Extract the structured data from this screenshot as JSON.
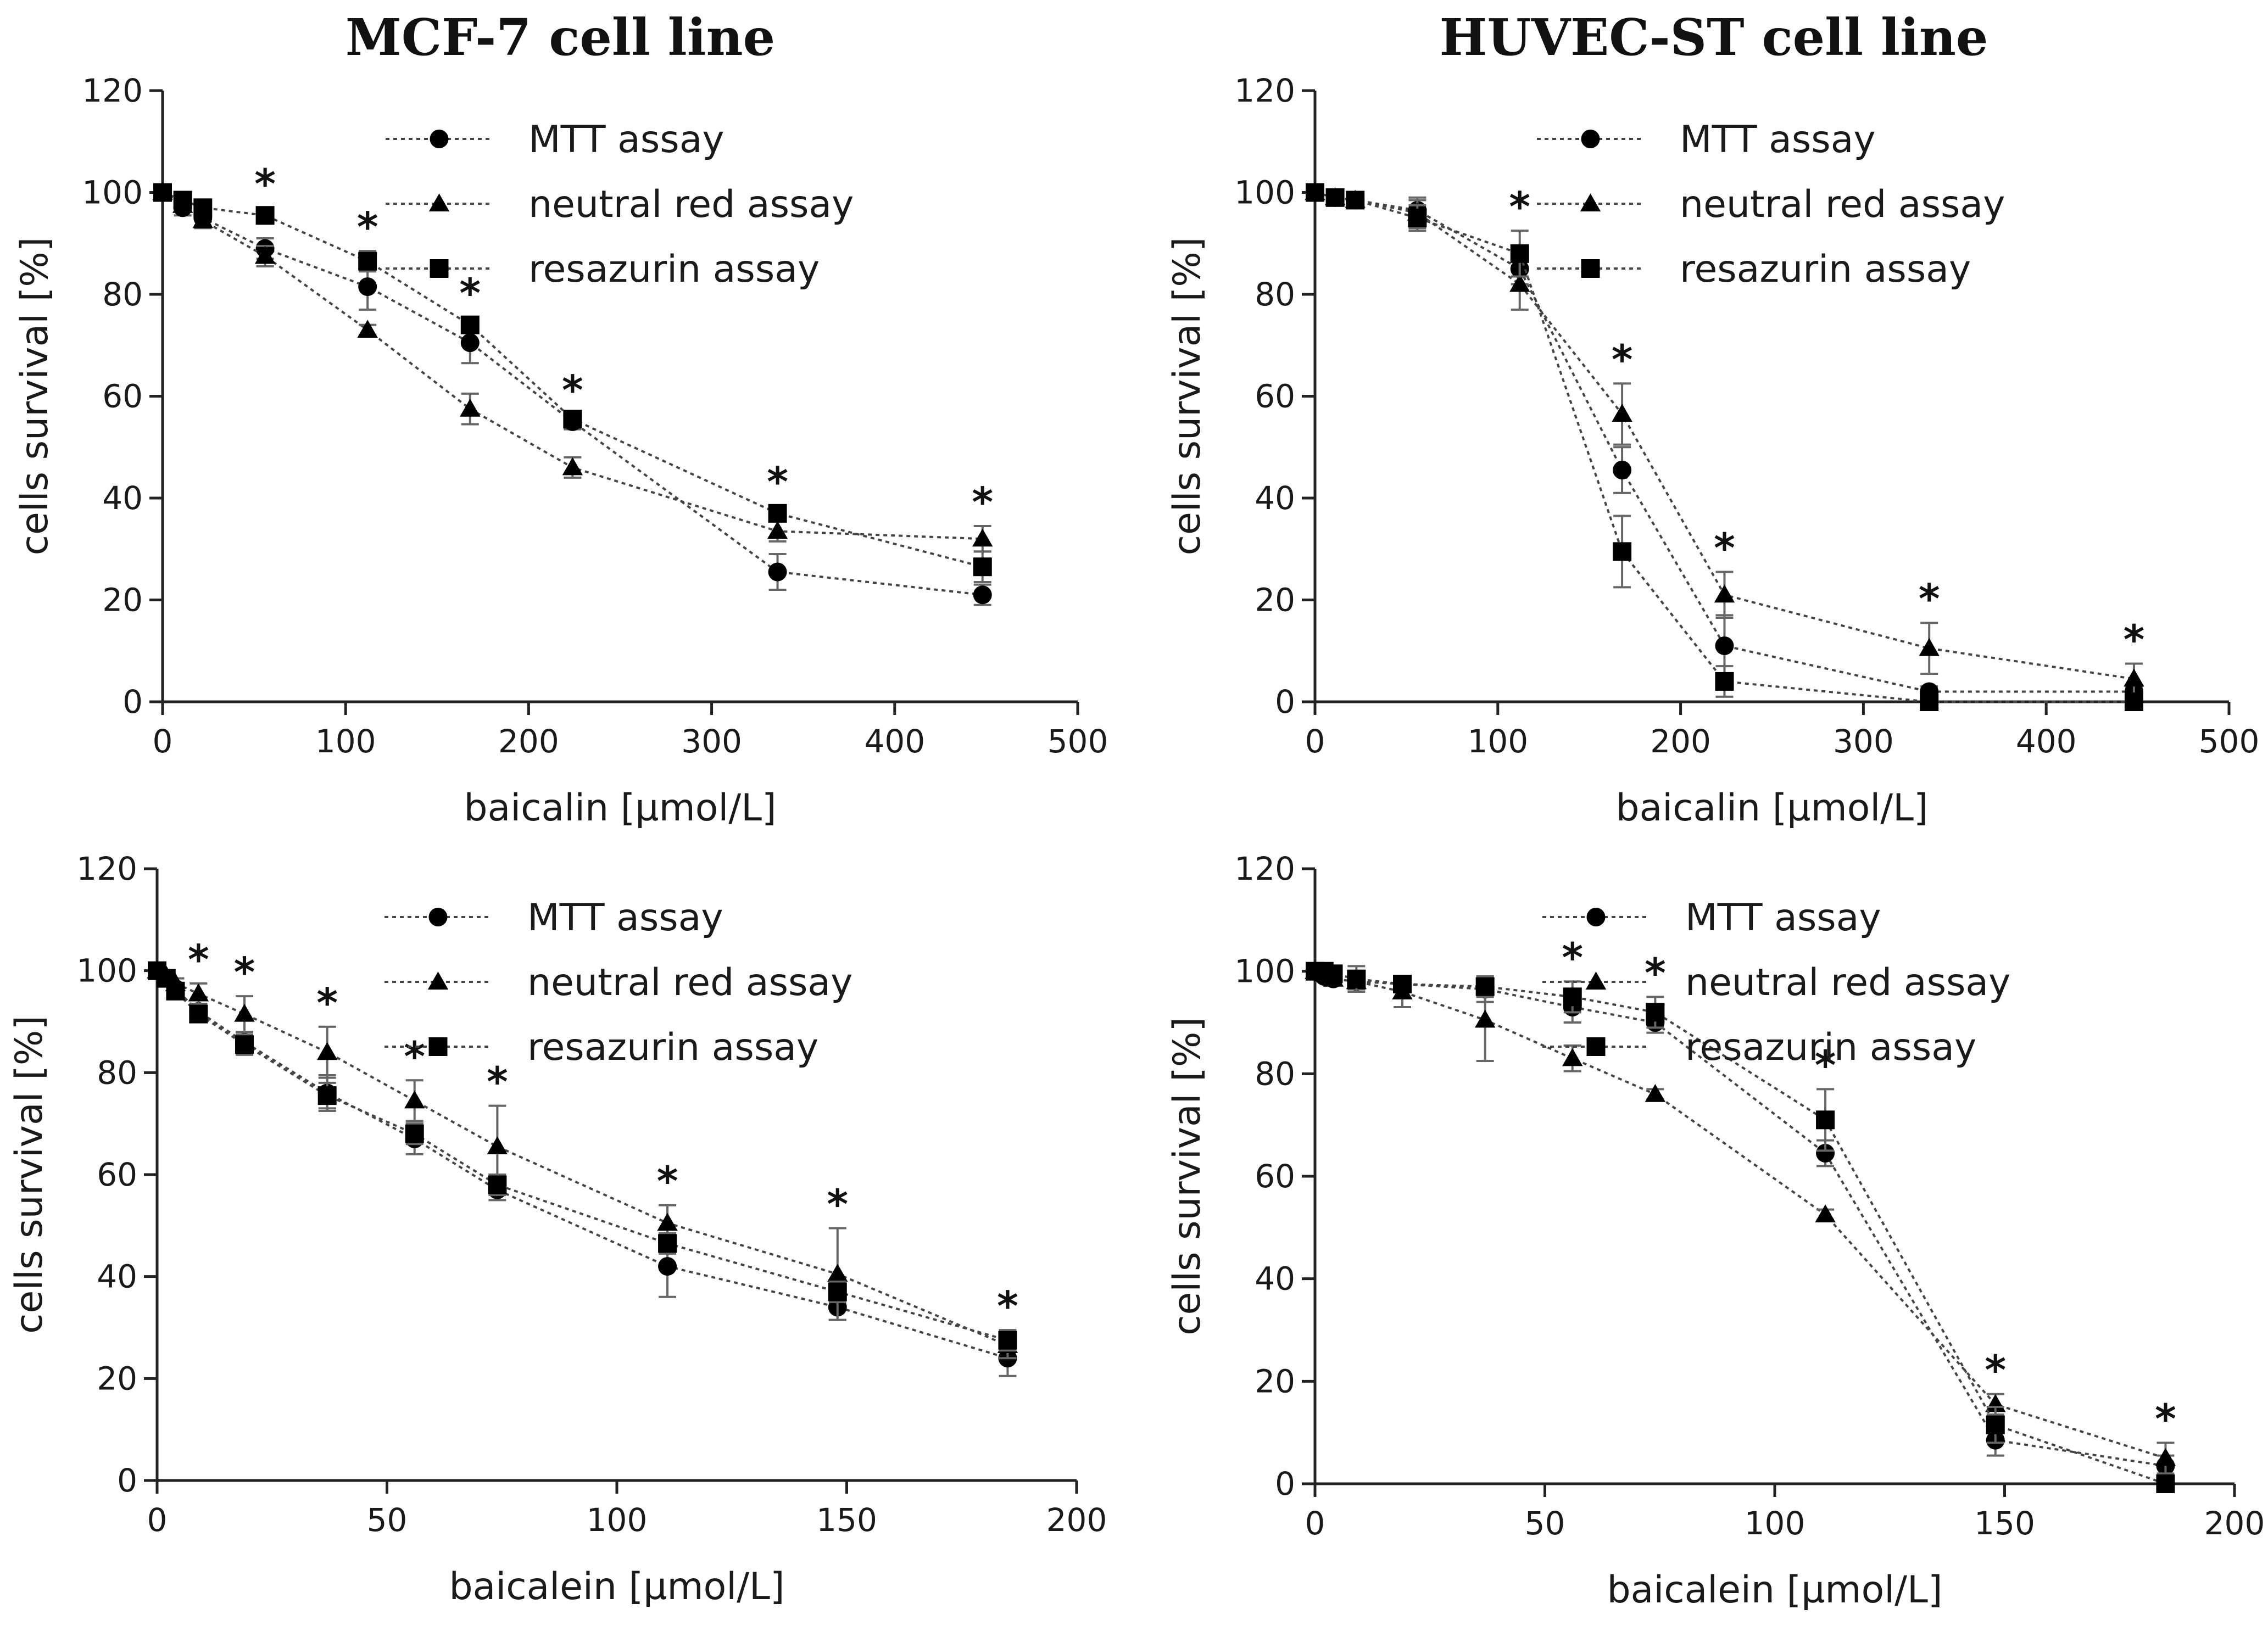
{
  "titles": [
    "MCF-7 cell line",
    "HUVEC-ST cell line"
  ],
  "chart_data": [
    {
      "type": "line",
      "title": "MCF-7 cell line",
      "xlabel": "baicalin [µmol/L]",
      "ylabel": "cells survival [%]",
      "xlim": [
        0,
        500
      ],
      "ylim": [
        0,
        120
      ],
      "xticks": [
        0,
        100,
        200,
        300,
        400,
        500
      ],
      "yticks": [
        0,
        20,
        40,
        60,
        80,
        100,
        120
      ],
      "x": [
        0,
        11,
        22,
        56,
        112,
        168,
        224,
        336,
        448
      ],
      "series": [
        {
          "name": "MTT assay",
          "marker": "circle",
          "values": [
            100,
            97,
            95,
            89,
            81.5,
            70.5,
            55,
            25.5,
            21
          ],
          "errors": [
            0,
            1.5,
            1.5,
            2,
            4.5,
            4,
            1.5,
            3.5,
            2
          ]
        },
        {
          "name": "neutral red assay",
          "marker": "triangle",
          "values": [
            100,
            97.5,
            94.5,
            87.5,
            73,
            57.5,
            46,
            33.5,
            32
          ],
          "errors": [
            0,
            1,
            1.5,
            2,
            1,
            3,
            2,
            2,
            2.5
          ]
        },
        {
          "name": "resazurin assay",
          "marker": "square",
          "values": [
            100,
            98.5,
            97,
            95.5,
            86.5,
            74,
            55.5,
            37,
            26.5
          ],
          "errors": [
            0,
            1,
            1,
            1.5,
            2,
            1.5,
            1,
            1.5,
            3
          ]
        }
      ],
      "significance": {
        "marker": "*",
        "x": [
          56,
          112,
          168,
          224,
          336,
          448
        ]
      },
      "legend": "top-right"
    },
    {
      "type": "line",
      "title": "HUVEC-ST cell line",
      "xlabel": "baicalin [µmol/L]",
      "ylabel": "cells survival [%]",
      "xlim": [
        0,
        500
      ],
      "ylim": [
        0,
        120
      ],
      "xticks": [
        0,
        100,
        200,
        300,
        400,
        500
      ],
      "yticks": [
        0,
        20,
        40,
        60,
        80,
        100,
        120
      ],
      "x": [
        0,
        11,
        22,
        56,
        112,
        168,
        224,
        336,
        448
      ],
      "series": [
        {
          "name": "MTT assay",
          "marker": "circle",
          "values": [
            100,
            99,
            98.5,
            96.5,
            85,
            45.5,
            11,
            2,
            2
          ],
          "errors": [
            0,
            0.5,
            0.5,
            2,
            3,
            4.5,
            6,
            1,
            1
          ]
        },
        {
          "name": "neutral red assay",
          "marker": "triangle",
          "values": [
            100,
            99,
            98.5,
            96,
            82,
            56.5,
            21,
            10.5,
            4.5
          ],
          "errors": [
            0,
            0.5,
            0.5,
            3,
            5,
            6,
            4.5,
            5,
            3
          ]
        },
        {
          "name": "resazurin assay",
          "marker": "square",
          "values": [
            100,
            99,
            98.5,
            95,
            88,
            29.5,
            4,
            0,
            0
          ],
          "errors": [
            0,
            0.5,
            0.5,
            2.5,
            4.5,
            7,
            3,
            0.5,
            0.5
          ]
        }
      ],
      "significance": {
        "marker": "*",
        "x": [
          112,
          168,
          224,
          336,
          448
        ]
      },
      "legend": "top-right"
    },
    {
      "type": "line",
      "title": "",
      "xlabel": "baicalein [µmol/L]",
      "ylabel": "cells survival [%]",
      "xlim": [
        0,
        200
      ],
      "ylim": [
        0,
        120
      ],
      "xticks": [
        0,
        50,
        100,
        150,
        200
      ],
      "yticks": [
        0,
        20,
        40,
        60,
        80,
        100,
        120
      ],
      "x": [
        0,
        2,
        4,
        9,
        19,
        37,
        56,
        74,
        111,
        148,
        185
      ],
      "series": [
        {
          "name": "MTT assay",
          "marker": "circle",
          "values": [
            100,
            98.5,
            96.5,
            92,
            86,
            76,
            67,
            57,
            42,
            34,
            24
          ],
          "errors": [
            0,
            1,
            1,
            1.5,
            2,
            3.5,
            3,
            2,
            6,
            2.5,
            3.5
          ]
        },
        {
          "name": "neutral red assay",
          "marker": "triangle",
          "values": [
            100,
            99,
            97.5,
            95.5,
            91.5,
            84,
            74.5,
            65.5,
            50.5,
            40.5,
            26.5
          ],
          "errors": [
            0,
            1,
            1,
            2,
            3.5,
            5,
            4,
            8,
            3.5,
            9,
            2.5
          ]
        },
        {
          "name": "resazurin assay",
          "marker": "square",
          "values": [
            100,
            98.5,
            96,
            91.5,
            85.5,
            75.5,
            68,
            58,
            46.5,
            37,
            27.5
          ],
          "errors": [
            0,
            1,
            1,
            1.5,
            2,
            2.5,
            2,
            2,
            2,
            2,
            2
          ]
        }
      ],
      "significance": {
        "marker": "*",
        "x": [
          9,
          19,
          37,
          56,
          74,
          111,
          148,
          185
        ]
      },
      "legend": "top-right"
    },
    {
      "type": "line",
      "title": "",
      "xlabel": "baicalein [µmol/L]",
      "ylabel": "cells survival [%]",
      "xlim": [
        0,
        200
      ],
      "ylim": [
        0,
        120
      ],
      "xticks": [
        0,
        50,
        100,
        150,
        200
      ],
      "yticks": [
        0,
        20,
        40,
        60,
        80,
        100,
        120
      ],
      "x": [
        0,
        2,
        4,
        9,
        19,
        37,
        56,
        74,
        111,
        148,
        185
      ],
      "series": [
        {
          "name": "MTT assay",
          "marker": "circle",
          "values": [
            100,
            99,
            98.5,
            98,
            97.5,
            96.5,
            93,
            90,
            64.5,
            8.5,
            3.5
          ],
          "errors": [
            0,
            1,
            1,
            1.5,
            1.5,
            2.5,
            3,
            2,
            2.5,
            3,
            2
          ]
        },
        {
          "name": "neutral red assay",
          "marker": "triangle",
          "values": [
            100,
            99.5,
            98.5,
            98,
            96,
            90.5,
            83,
            76,
            52.5,
            15.5,
            5
          ],
          "errors": [
            0,
            1,
            1,
            1.5,
            3,
            8,
            2.5,
            1,
            1,
            2,
            3
          ]
        },
        {
          "name": "resazurin assay",
          "marker": "square",
          "values": [
            100,
            100,
            99.5,
            98.5,
            97.5,
            97,
            95,
            92,
            71,
            11.5,
            0
          ],
          "errors": [
            0,
            1,
            1,
            2.5,
            1.5,
            2,
            3,
            3,
            6,
            3.5,
            0.5
          ]
        }
      ],
      "significance": {
        "marker": "*",
        "x": [
          56,
          74,
          111,
          148,
          185
        ]
      },
      "legend": "top-right"
    }
  ]
}
